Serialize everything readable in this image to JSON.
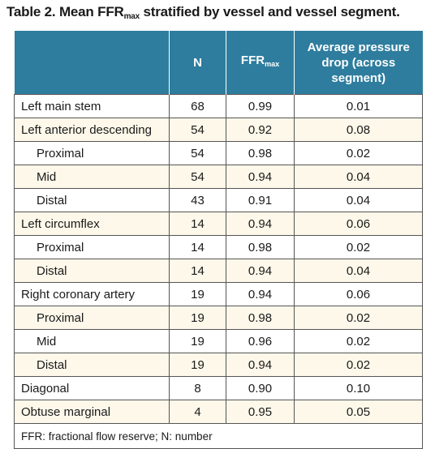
{
  "title": {
    "main": "Table 2. Mean FFR",
    "sub": "max",
    "rest": " stratified by vessel and vessel segment."
  },
  "header": {
    "n": "N",
    "ffr_main": "FFR",
    "ffr_sub": "max",
    "pressure_drop": "Average pressure drop (across segment)"
  },
  "colors": {
    "header_bg": "#2e7d9e",
    "alt_row_bg": "#fdf8ea"
  },
  "rows": [
    {
      "label": "Left main stem",
      "n": "68",
      "ffr": "0.99",
      "drop": "0.01",
      "indent": false
    },
    {
      "label": "Left anterior descending",
      "n": "54",
      "ffr": "0.92",
      "drop": "0.08",
      "indent": false
    },
    {
      "label": "Proximal",
      "n": "54",
      "ffr": "0.98",
      "drop": "0.02",
      "indent": true
    },
    {
      "label": "Mid",
      "n": "54",
      "ffr": "0.94",
      "drop": "0.04",
      "indent": true
    },
    {
      "label": "Distal",
      "n": "43",
      "ffr": "0.91",
      "drop": "0.04",
      "indent": true
    },
    {
      "label": "Left circumflex",
      "n": "14",
      "ffr": "0.94",
      "drop": "0.06",
      "indent": false
    },
    {
      "label": "Proximal",
      "n": "14",
      "ffr": "0.98",
      "drop": "0.02",
      "indent": true
    },
    {
      "label": "Distal",
      "n": "14",
      "ffr": "0.94",
      "drop": "0.04",
      "indent": true
    },
    {
      "label": "Right coronary artery",
      "n": "19",
      "ffr": "0.94",
      "drop": "0.06",
      "indent": false
    },
    {
      "label": "Proximal",
      "n": "19",
      "ffr": "0.98",
      "drop": "0.02",
      "indent": true
    },
    {
      "label": "Mid",
      "n": "19",
      "ffr": "0.96",
      "drop": "0.02",
      "indent": true
    },
    {
      "label": "Distal",
      "n": "19",
      "ffr": "0.94",
      "drop": "0.02",
      "indent": true
    },
    {
      "label": "Diagonal",
      "n": "8",
      "ffr": "0.90",
      "drop": "0.10",
      "indent": false
    },
    {
      "label": "Obtuse marginal",
      "n": "4",
      "ffr": "0.95",
      "drop": "0.05",
      "indent": false
    }
  ],
  "footnote": "FFR: fractional flow reserve; N: number"
}
